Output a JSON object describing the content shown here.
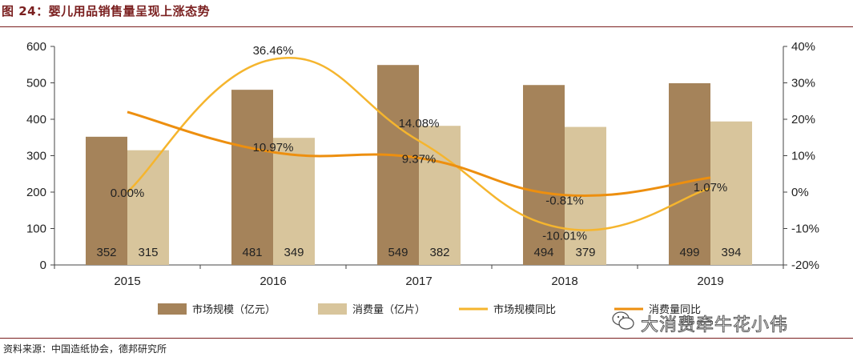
{
  "title": "图 24：婴儿用品销售量呈现上涨态势",
  "source": "资料来源：中国造纸协会，德邦研究所",
  "watermark": "大消费牵牛花小伟",
  "colors": {
    "market_bar": "#a5835a",
    "consume_bar": "#d8c59c",
    "market_line": "#f5b52e",
    "consume_line": "#ed8f0f",
    "title": "#7a1f1f"
  },
  "chart_data": {
    "type": "bar+line",
    "categories": [
      "2015",
      "2016",
      "2017",
      "2018",
      "2019"
    ],
    "series": [
      {
        "name": "市场规模（亿元）",
        "kind": "bar",
        "axis": "left",
        "values": [
          352,
          481,
          549,
          494,
          499
        ],
        "labels": [
          "352",
          "481",
          "549",
          "494",
          "499"
        ]
      },
      {
        "name": "消费量（亿片）",
        "kind": "bar",
        "axis": "left",
        "values": [
          315,
          349,
          382,
          379,
          394
        ],
        "labels": [
          "315",
          "349",
          "382",
          "379",
          "394"
        ]
      },
      {
        "name": "市场规模同比",
        "kind": "line",
        "axis": "right",
        "values": [
          0.0,
          36.46,
          14.08,
          -10.01,
          1.07
        ],
        "labels": [
          "0.00%",
          "36.46%",
          "14.08%",
          "-10.01%",
          "1.07%"
        ]
      },
      {
        "name": "消费量同比",
        "kind": "line",
        "axis": "right",
        "values": [
          22.0,
          10.97,
          9.37,
          -0.81,
          3.96
        ],
        "labels": [
          "",
          "10.97%",
          "9.37%",
          "-0.81%",
          ""
        ]
      }
    ],
    "y_left": {
      "min": 0,
      "max": 600,
      "ticks": [
        "0",
        "100",
        "200",
        "300",
        "400",
        "500",
        "600"
      ]
    },
    "y_right": {
      "min": -20,
      "max": 40,
      "ticks": [
        "-20%",
        "-10%",
        "0%",
        "10%",
        "20%",
        "30%",
        "40%"
      ]
    },
    "legend": [
      "市场规模（亿元）",
      "消费量（亿片）",
      "市场规模同比",
      "消费量同比"
    ],
    "legend_position": "bottom"
  }
}
